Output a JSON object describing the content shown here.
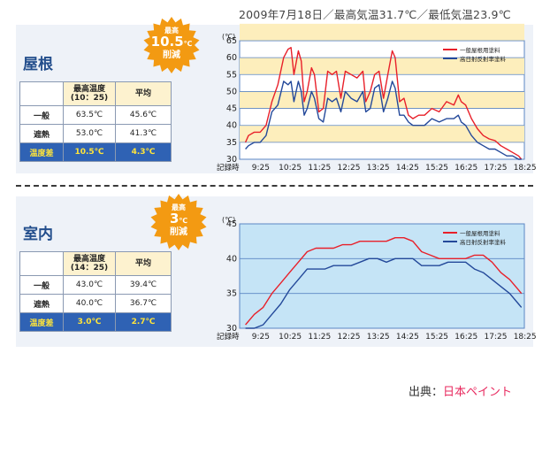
{
  "caption": "2009年7月18日／最高気温31.7℃／最低気温23.9℃",
  "source": {
    "prefix": "出典：",
    "link": "日本ペイント"
  },
  "sections": [
    {
      "id": "roof",
      "title": "屋根",
      "badge": {
        "line1": "最高",
        "value": "10.5",
        "unit": "℃",
        "line3": "削減"
      },
      "table": {
        "headers": [
          "最高温度",
          "(10：25)",
          "平均"
        ],
        "rows": [
          {
            "label": "一般",
            "max": "63.5℃",
            "avg": "45.6℃"
          },
          {
            "label": "遮熱",
            "max": "53.0℃",
            "avg": "41.3℃"
          },
          {
            "label": "温度差",
            "max": "10.5℃",
            "avg": "4.3℃"
          }
        ]
      }
    },
    {
      "id": "room",
      "title": "室内",
      "badge": {
        "line1": "最高",
        "value": "3",
        "unit": "℃",
        "line3": "削減"
      },
      "table": {
        "headers": [
          "最高温度",
          "(14：25)",
          "平均"
        ],
        "rows": [
          {
            "label": "一般",
            "max": "43.0℃",
            "avg": "39.4℃"
          },
          {
            "label": "遮熱",
            "max": "40.0℃",
            "avg": "36.7℃"
          },
          {
            "label": "温度差",
            "max": "3.0℃",
            "avg": "2.7℃"
          }
        ]
      }
    }
  ],
  "chart_data": [
    {
      "type": "line",
      "unit_label": "(℃)",
      "xlabel": "記録時",
      "categories": [
        "9:25",
        "10:25",
        "11:25",
        "12:25",
        "13:25",
        "14:25",
        "15:25",
        "16:25",
        "17:25",
        "18:25"
      ],
      "ylim": [
        30,
        65
      ],
      "yticks": [
        30,
        35,
        40,
        45,
        50,
        55,
        60,
        65
      ],
      "grid": true,
      "legend_position": "top-right",
      "colors": {
        "general": "#e8202a",
        "heat": "#24499a",
        "band": "#fdeebc",
        "plot_bg": "#ffffff",
        "grid": "#5b86c4"
      },
      "series": [
        {
          "name": "一般屋根用塗料",
          "x": [
            8.9,
            9.0,
            9.2,
            9.4,
            9.6,
            9.8,
            10.0,
            10.2,
            10.35,
            10.45,
            10.55,
            10.7,
            10.8,
            10.9,
            11.0,
            11.15,
            11.25,
            11.4,
            11.55,
            11.7,
            11.85,
            12.0,
            12.15,
            12.3,
            12.5,
            12.7,
            12.9,
            13.0,
            13.15,
            13.3,
            13.45,
            13.6,
            13.75,
            13.9,
            14.0,
            14.15,
            14.3,
            14.45,
            14.6,
            14.8,
            15.0,
            15.25,
            15.5,
            15.75,
            16.0,
            16.15,
            16.25,
            16.4,
            16.6,
            16.8,
            17.0,
            17.2,
            17.4,
            17.6,
            17.8,
            18.0,
            18.2,
            18.3
          ],
          "values": [
            35,
            37,
            38,
            38,
            40,
            47,
            52,
            60,
            62.5,
            63,
            55,
            62,
            59,
            47,
            50,
            57,
            55,
            44,
            45,
            56,
            55,
            56,
            48,
            56,
            55,
            54,
            56,
            47,
            50,
            55,
            56,
            48,
            55,
            62,
            60,
            47,
            48,
            43,
            42,
            43,
            43,
            45,
            44,
            47,
            46,
            49,
            47,
            46,
            42,
            39,
            37,
            36,
            35.5,
            34,
            33,
            32,
            31,
            30
          ]
        },
        {
          "name": "高日射反射率塗料",
          "x": [
            8.9,
            9.0,
            9.2,
            9.4,
            9.6,
            9.8,
            10.0,
            10.2,
            10.35,
            10.45,
            10.55,
            10.7,
            10.8,
            10.9,
            11.0,
            11.15,
            11.25,
            11.4,
            11.55,
            11.7,
            11.85,
            12.0,
            12.15,
            12.3,
            12.5,
            12.7,
            12.9,
            13.0,
            13.15,
            13.3,
            13.45,
            13.6,
            13.75,
            13.9,
            14.0,
            14.15,
            14.3,
            14.45,
            14.6,
            14.8,
            15.0,
            15.25,
            15.5,
            15.75,
            16.0,
            16.15,
            16.25,
            16.4,
            16.6,
            16.8,
            17.0,
            17.2,
            17.4,
            17.6,
            17.8,
            18.0,
            18.2,
            18.3
          ],
          "values": [
            33,
            34,
            35,
            35,
            37,
            44,
            46,
            53,
            52,
            53,
            47,
            53,
            50,
            43,
            45,
            50,
            48,
            42,
            41,
            48,
            47,
            48,
            44,
            50,
            48,
            47,
            50,
            44,
            45,
            51,
            52,
            44,
            48,
            53,
            51,
            43,
            43,
            41,
            40,
            40,
            40,
            42,
            41,
            42,
            42,
            43,
            41,
            40,
            37,
            35,
            34,
            33,
            33,
            32,
            31,
            31,
            30,
            30
          ]
        }
      ]
    },
    {
      "type": "line",
      "unit_label": "(℃)",
      "xlabel": "記録時",
      "categories": [
        "9:25",
        "10:25",
        "11:25",
        "12:25",
        "13:25",
        "14:25",
        "15:25",
        "16:25",
        "17:25",
        "18:25"
      ],
      "ylim": [
        30,
        45
      ],
      "yticks": [
        30,
        35,
        40,
        45
      ],
      "grid": true,
      "legend_position": "top-right",
      "colors": {
        "general": "#e8202a",
        "heat": "#24499a",
        "plot_bg": "#c5e4f6",
        "grid": "#5b86c4"
      },
      "series": [
        {
          "name": "一般屋根用塗料",
          "x": [
            8.9,
            9.2,
            9.5,
            9.8,
            10.1,
            10.4,
            10.7,
            11.0,
            11.3,
            11.6,
            11.9,
            12.2,
            12.5,
            12.8,
            13.1,
            13.4,
            13.7,
            14.0,
            14.3,
            14.6,
            14.9,
            15.2,
            15.5,
            15.8,
            16.1,
            16.4,
            16.7,
            17.0,
            17.3,
            17.6,
            17.9,
            18.2,
            18.3
          ],
          "values": [
            30.5,
            32,
            33,
            35,
            36.5,
            38,
            39.5,
            41,
            41.5,
            41.5,
            41.5,
            42,
            42,
            42.5,
            42.5,
            42.5,
            42.5,
            43,
            43,
            42.5,
            41,
            40.5,
            40,
            40,
            40,
            40,
            40.5,
            40.5,
            39.5,
            38,
            37,
            35.5,
            35
          ]
        },
        {
          "name": "高日射反射率塗料",
          "x": [
            8.9,
            9.2,
            9.5,
            9.8,
            10.1,
            10.4,
            10.7,
            11.0,
            11.3,
            11.6,
            11.9,
            12.2,
            12.5,
            12.8,
            13.1,
            13.4,
            13.7,
            14.0,
            14.3,
            14.6,
            14.9,
            15.2,
            15.5,
            15.8,
            16.1,
            16.4,
            16.7,
            17.0,
            17.3,
            17.6,
            17.9,
            18.2,
            18.3
          ],
          "values": [
            30,
            30,
            30.5,
            32,
            33.5,
            35.5,
            37,
            38.5,
            38.5,
            38.5,
            39,
            39,
            39,
            39.5,
            40,
            40,
            39.5,
            40,
            40,
            40,
            39,
            39,
            39,
            39.5,
            39.5,
            39.5,
            38.5,
            38,
            37,
            36,
            35,
            33.5,
            33
          ]
        }
      ]
    }
  ]
}
